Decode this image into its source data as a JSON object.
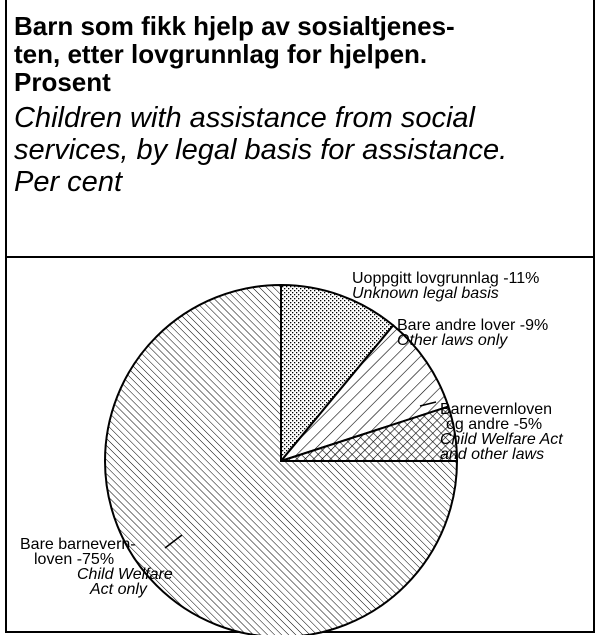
{
  "chart_data": {
    "type": "pie",
    "title": "Barn som fikk hjelp av sosialtjenesten, etter lovgrunnlag for hjelpen. Prosent",
    "title_lines": [
      "Barn som fikk hjelp av sosialtjenes-",
      "ten, etter lovgrunnlag for hjelpen.",
      "Prosent"
    ],
    "subtitle": "Children with assistance from social services, by legal basis for assistance. Per cent",
    "subtitle_lines": [
      "Children with assistance from social",
      "services, by legal basis for assistance.",
      "Per cent"
    ],
    "slices": [
      {
        "label_no": "Uoppgitt lovgrunnlag -11%",
        "label_en": "Unknown legal basis",
        "value": 11,
        "pattern": "dots"
      },
      {
        "label_no": "Bare andre lover -9%",
        "label_en": "Other laws only",
        "value": 9,
        "pattern": "hatch-right"
      },
      {
        "label_no": "Barnevernloven og andre -5%",
        "label_no_lines": [
          "Barnevernloven",
          "og andre -5%"
        ],
        "label_en": "Child Welfare Act and other laws",
        "label_en_lines": [
          "Child Welfare Act",
          "and other laws"
        ],
        "value": 5,
        "pattern": "crosshatch"
      },
      {
        "label_no": "Bare barnevernloven -75%",
        "label_no_lines": [
          "Bare barnevern-",
          "loven -75%"
        ],
        "label_en": "Child Welfare Act only",
        "label_en_lines": [
          "Child Welfare",
          "Act only"
        ],
        "value": 75,
        "pattern": "hatch-left"
      }
    ]
  }
}
